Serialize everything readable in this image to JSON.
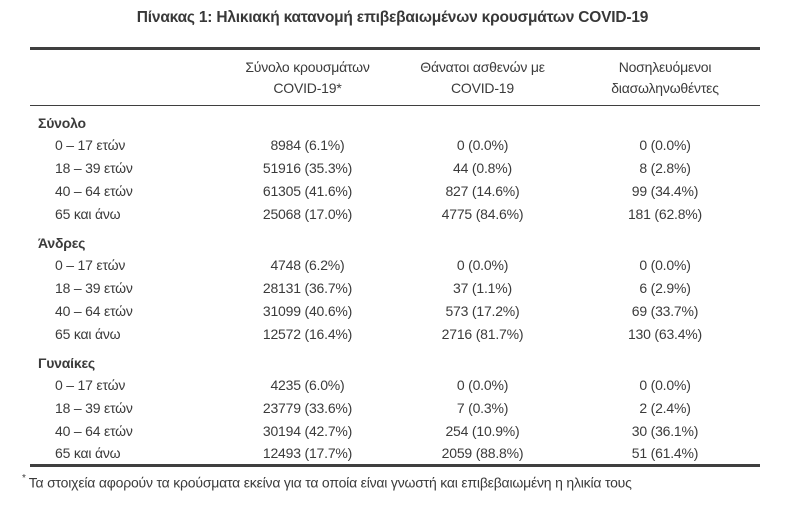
{
  "page": {
    "title": "Πίνακας 1: Ηλικιακή κατανομή επιβεβαιωμένων κρουσμάτων COVID-19"
  },
  "colors": {
    "text": "#3b3b3b",
    "border": "#3f3f3f",
    "background": "#ffffff"
  },
  "table": {
    "column_headers": [
      {
        "line1": "Σύνολο κρουσμάτων",
        "line2": "COVID-19*"
      },
      {
        "line1": "Θάνατοι ασθενών με",
        "line2": "COVID-19"
      },
      {
        "line1": "Νοσηλευόμενοι",
        "line2": "διασωληνωθέντες"
      }
    ],
    "sections": [
      {
        "label": "Σύνολο",
        "rows": [
          {
            "label": "0 – 17 ετών",
            "cases": "8984 (6.1%)",
            "deaths": "0 (0.0%)",
            "intubated": "0 (0.0%)"
          },
          {
            "label": "18 – 39 ετών",
            "cases": "51916 (35.3%)",
            "deaths": "44 (0.8%)",
            "intubated": "8 (2.8%)"
          },
          {
            "label": "40 – 64 ετών",
            "cases": "61305 (41.6%)",
            "deaths": "827 (14.6%)",
            "intubated": "99 (34.4%)"
          },
          {
            "label": "65 και άνω",
            "cases": "25068 (17.0%)",
            "deaths": "4775 (84.6%)",
            "intubated": "181 (62.8%)"
          }
        ]
      },
      {
        "label": "Άνδρες",
        "rows": [
          {
            "label": "0 – 17 ετών",
            "cases": "4748 (6.2%)",
            "deaths": "0 (0.0%)",
            "intubated": "0 (0.0%)"
          },
          {
            "label": "18 – 39 ετών",
            "cases": "28131 (36.7%)",
            "deaths": "37 (1.1%)",
            "intubated": "6 (2.9%)"
          },
          {
            "label": "40 – 64 ετών",
            "cases": "31099 (40.6%)",
            "deaths": "573 (17.2%)",
            "intubated": "69 (33.7%)"
          },
          {
            "label": "65 και άνω",
            "cases": "12572 (16.4%)",
            "deaths": "2716 (81.7%)",
            "intubated": "130 (63.4%)"
          }
        ]
      },
      {
        "label": "Γυναίκες",
        "rows": [
          {
            "label": "0 – 17 ετών",
            "cases": "4235 (6.0%)",
            "deaths": "0 (0.0%)",
            "intubated": "0 (0.0%)"
          },
          {
            "label": "18 – 39 ετών",
            "cases": "23779 (33.6%)",
            "deaths": "7 (0.3%)",
            "intubated": "2 (2.4%)"
          },
          {
            "label": "40 – 64 ετών",
            "cases": "30194 (42.7%)",
            "deaths": "254 (10.9%)",
            "intubated": "30 (36.1%)"
          },
          {
            "label": "65 και άνω",
            "cases": "12493 (17.7%)",
            "deaths": "2059 (88.8%)",
            "intubated": "51 (61.4%)"
          }
        ]
      }
    ],
    "footnote_marker": "*",
    "footnote_text": "Τα στοιχεία αφορούν τα κρούσματα εκείνα για τα οποία είναι γνωστή και επιβεβαιωμένη η ηλικία τους"
  }
}
